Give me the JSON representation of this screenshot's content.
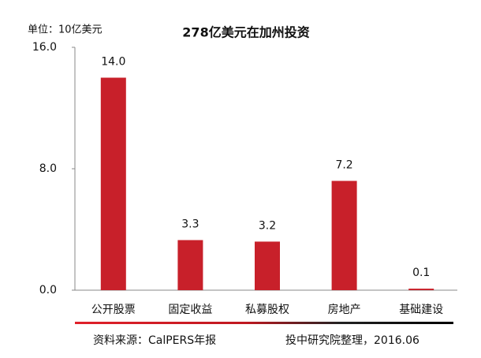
{
  "chart_data": {
    "type": "bar",
    "title": "278亿美元在加州投资",
    "y_label": "单位：10亿美元",
    "categories": [
      "公开股票",
      "固定收益",
      "私募股权",
      "房地产",
      "基础建设"
    ],
    "values": [
      14.0,
      3.3,
      3.2,
      7.2,
      0.1
    ],
    "value_labels": [
      "14.0",
      "3.3",
      "3.2",
      "7.2",
      "0.1"
    ],
    "color": "#c8202a",
    "ylim": [
      0,
      16
    ],
    "yticks": [
      {
        "value": 0,
        "label": "0.0"
      },
      {
        "value": 8,
        "label": "8.0"
      },
      {
        "value": 16,
        "label": "16.0"
      }
    ],
    "sources": [
      "资料来源：CalPERS年报",
      "投中研究院整理，2016.06"
    ]
  }
}
